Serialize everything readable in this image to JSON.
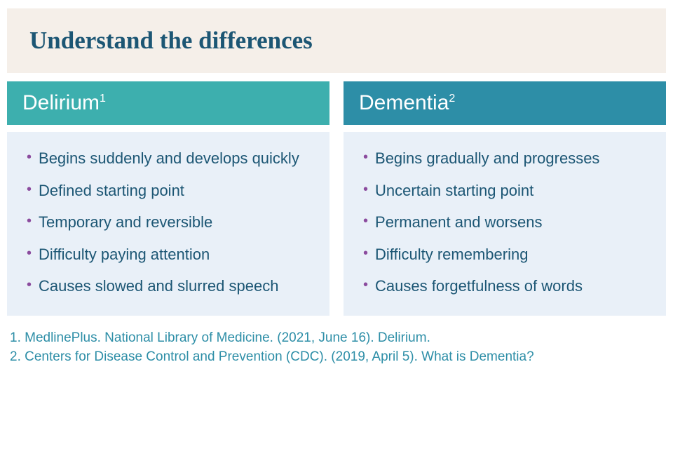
{
  "title_text": "Understand the differences",
  "title_color": "#1c5674",
  "title_bg": "#f5efe9",
  "columns": [
    {
      "header_label": "Delirium",
      "header_sup": "1",
      "header_bg": "#3dafae",
      "body_bg": "#e9f0f8",
      "items": [
        "Begins suddenly and develops quickly",
        "Defined starting point",
        "Temporary and reversible",
        "Difficulty paying attention",
        "Causes slowed and slurred speech"
      ]
    },
    {
      "header_label": "Dementia",
      "header_sup": "2",
      "header_bg": "#2d8ea7",
      "body_bg": "#e9f0f8",
      "items": [
        "Begins gradually and progresses",
        "Uncertain starting point",
        "Permanent and worsens",
        "Difficulty remembering",
        "Causes forgetfulness of words"
      ]
    }
  ],
  "bullet_color": "#8b4b9e",
  "text_color": "#1c5674",
  "citations": [
    "1.  MedlinePlus. National Library of Medicine. (2021, June 16). Delirium.",
    "2. Centers for Disease Control and Prevention  (CDC). (2019, April 5). What is Dementia?"
  ],
  "citation_color": "#2d8ea7"
}
